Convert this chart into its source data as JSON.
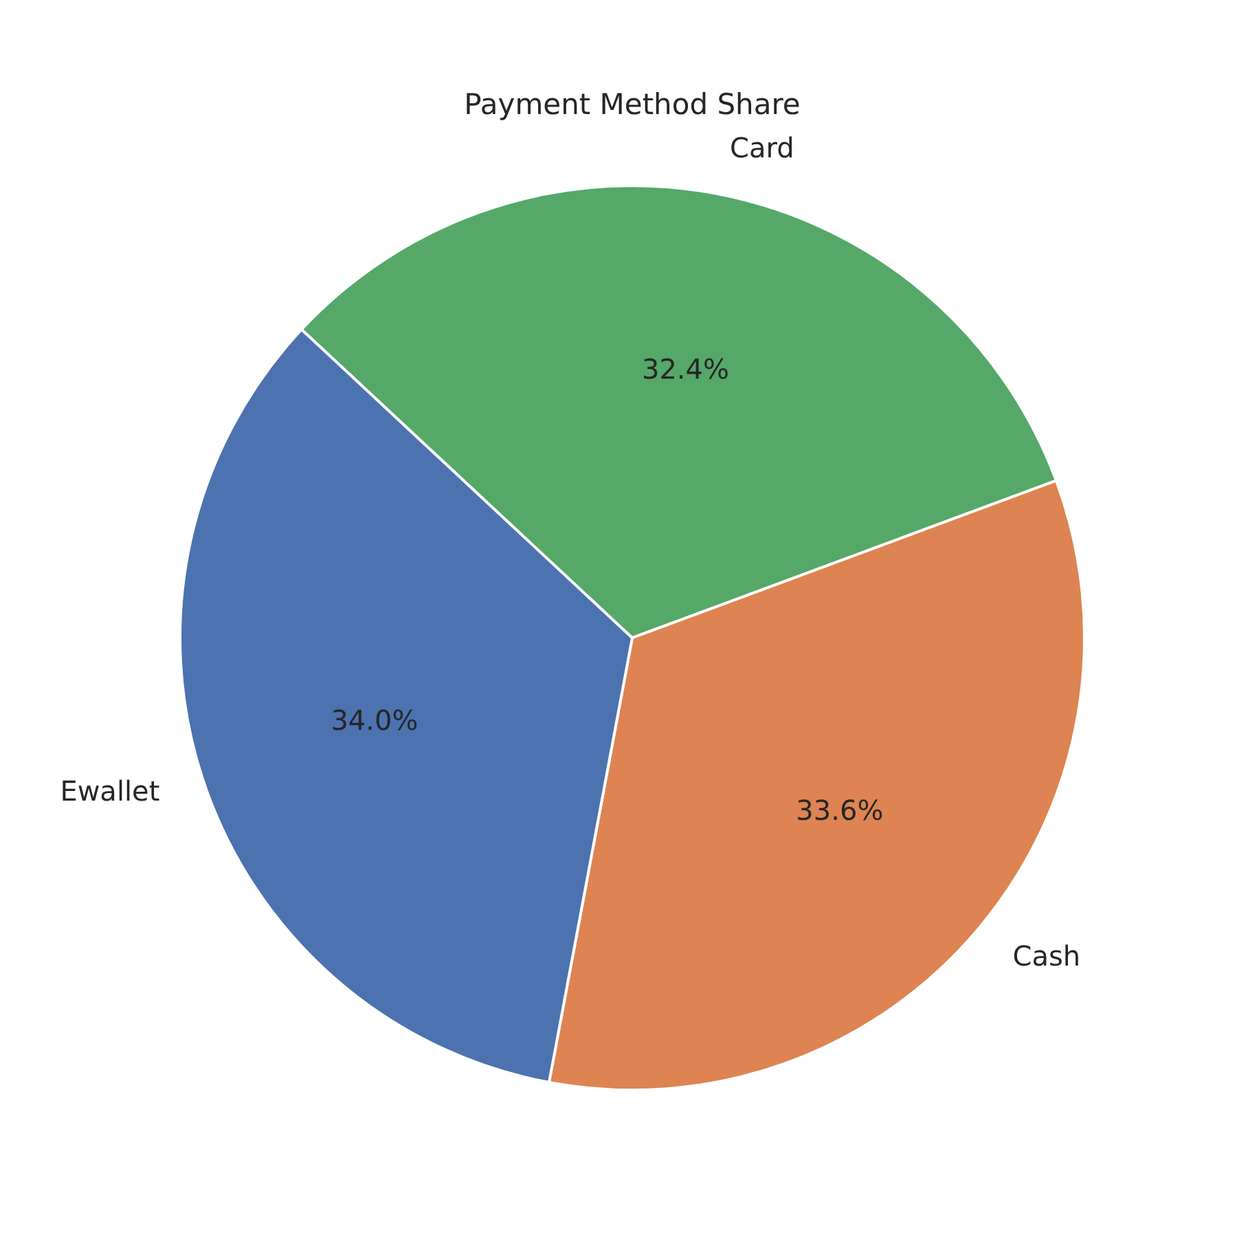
{
  "chart_data": {
    "type": "pie",
    "title": "Payment Method Share",
    "categories": [
      "Ewallet",
      "Cash",
      "Card"
    ],
    "values": [
      34.0,
      33.6,
      32.4
    ],
    "colors": [
      "#4c72b0",
      "#dd8452",
      "#55a868"
    ],
    "value_labels": [
      "34.0%",
      "33.6%",
      "32.4%"
    ],
    "legend": false
  }
}
